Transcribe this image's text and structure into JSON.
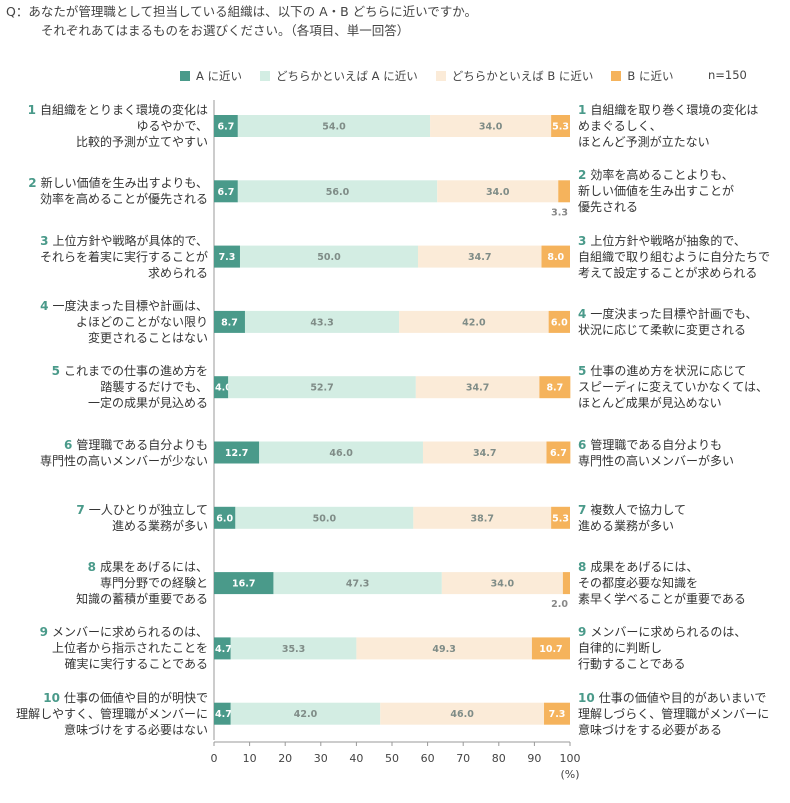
{
  "question": {
    "line1": "Q：あなたが管理職として担当している組織は、以下の A・B どちらに近いですか。",
    "line2": "それぞれあてはまるものをお選びください。（各項目、単一回答）"
  },
  "legend": [
    {
      "label": "A に近い",
      "color": "#4a9a8a"
    },
    {
      "label": "どちらかといえば A に近い",
      "color": "#d3ede3"
    },
    {
      "label": "どちらかといえば B に近い",
      "color": "#fbebd8"
    },
    {
      "label": "B に近い",
      "color": "#f5b35c"
    }
  ],
  "n_label": "n=150",
  "x_axis": {
    "ticks": [
      "0",
      "10",
      "20",
      "30",
      "40",
      "50",
      "60",
      "70",
      "80",
      "90",
      "100"
    ],
    "unit": "(%)"
  },
  "chart_data": {
    "type": "bar",
    "stacked": true,
    "orientation": "horizontal",
    "xlim": [
      0,
      100
    ],
    "xlabel": "(%)",
    "grid": false,
    "legend_position": "top",
    "series": [
      {
        "name": "A に近い",
        "color": "#4a9a8a",
        "values": [
          6.7,
          6.7,
          7.3,
          8.7,
          4.0,
          12.7,
          6.0,
          16.7,
          4.7,
          4.7
        ]
      },
      {
        "name": "どちらかといえば A に近い",
        "color": "#d3ede3",
        "values": [
          54.0,
          56.0,
          50.0,
          43.3,
          52.7,
          46.0,
          50.0,
          47.3,
          35.3,
          42.0
        ]
      },
      {
        "name": "どちらかといえば B に近い",
        "color": "#fbebd8",
        "values": [
          34.0,
          34.0,
          34.7,
          42.0,
          34.7,
          34.7,
          38.7,
          34.0,
          49.3,
          46.0
        ]
      },
      {
        "name": "B に近い",
        "color": "#f5b35c",
        "values": [
          5.3,
          3.3,
          8.0,
          6.0,
          8.7,
          6.7,
          5.3,
          2.0,
          10.7,
          7.3
        ]
      }
    ],
    "items": [
      {
        "num": "1",
        "left": [
          "自組織をとりまく環境の変化は",
          "ゆるやかで、",
          "比較的予測が立てやすい"
        ],
        "right": [
          "自組織を取り巻く環境の変化は",
          "めまぐるしく、",
          "ほとんど予測が立たない"
        ]
      },
      {
        "num": "2",
        "left": [
          "新しい価値を生み出すよりも、",
          "効率を高めることが優先される"
        ],
        "right": [
          "効率を高めることよりも、",
          "新しい価値を生み出すことが",
          "優先される"
        ]
      },
      {
        "num": "3",
        "left": [
          "上位方針や戦略が具体的で、",
          "それらを着実に実行することが",
          "求められる"
        ],
        "right": [
          "上位方針や戦略が抽象的で、",
          "自組織で取り組むように自分たちで",
          "考えて設定することが求められる"
        ]
      },
      {
        "num": "4",
        "left": [
          "一度決まった目標や計画は、",
          "よほどのことがない限り",
          "変更されることはない"
        ],
        "right": [
          "一度決まった目標や計画でも、",
          "状況に応じて柔軟に変更される"
        ]
      },
      {
        "num": "5",
        "left": [
          "これまでの仕事の進め方を",
          "踏襲するだけでも、",
          "一定の成果が見込める"
        ],
        "right": [
          "仕事の進め方を状況に応じて",
          "スピーディに変えていかなくては、",
          "ほとんど成果が見込めない"
        ]
      },
      {
        "num": "6",
        "left": [
          "管理職である自分よりも",
          "専門性の高いメンバーが少ない"
        ],
        "right": [
          "管理職である自分よりも",
          "専門性の高いメンバーが多い"
        ]
      },
      {
        "num": "7",
        "left": [
          "一人ひとりが独立して",
          "進める業務が多い"
        ],
        "right": [
          "複数人で協力して",
          "進める業務が多い"
        ]
      },
      {
        "num": "8",
        "left": [
          "成果をあげるには、",
          "専門分野での経験と",
          "知識の蓄積が重要である"
        ],
        "right": [
          "成果をあげるには、",
          "その都度必要な知識を",
          "素早く学べることが重要である"
        ]
      },
      {
        "num": "9",
        "left": [
          "メンバーに求められるのは、",
          "上位者から指示されたことを",
          "確実に実行することである"
        ],
        "right": [
          "メンバーに求められるのは、",
          "自律的に判断し",
          "行動することである"
        ]
      },
      {
        "num": "10",
        "left": [
          "仕事の価値や目的が明快で",
          "理解しやすく、管理職がメンバーに",
          "意味づけをする必要はない"
        ],
        "right": [
          "仕事の価値や目的があいまいで",
          "理解しづらく、管理職がメンバーに",
          "意味づけをする必要がある"
        ]
      }
    ]
  }
}
